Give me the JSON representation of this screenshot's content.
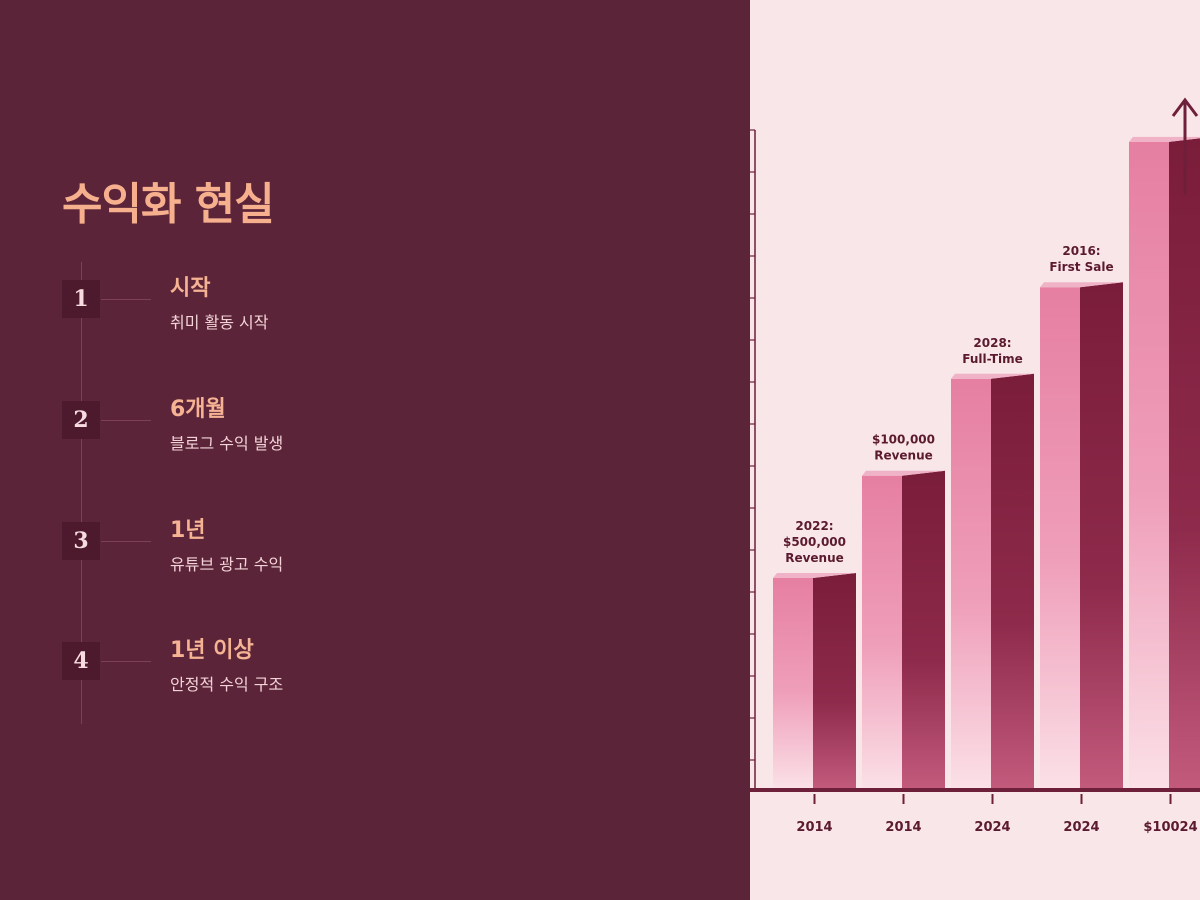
{
  "slide": {
    "title": "수익화 현실"
  },
  "timeline": {
    "steps": [
      {
        "number": "1",
        "title": "시작",
        "description": "취미 활동 시작"
      },
      {
        "number": "2",
        "title": "6개월",
        "description": "블로그 수익 발생"
      },
      {
        "number": "3",
        "title": "1년",
        "description": "유튜브 광고 수익"
      },
      {
        "number": "4",
        "title": "1년 이상",
        "description": "안정적 수익 구조"
      }
    ]
  },
  "chart_data": {
    "type": "bar",
    "categories": [
      "2014",
      "2014",
      "2024",
      "2024",
      "$10024"
    ],
    "values": [
      195,
      290,
      380,
      465,
      600
    ],
    "bar_labels": [
      [
        "2022:",
        "$500,000",
        "Revenue"
      ],
      [
        "$100,000",
        "Revenue"
      ],
      [
        "2028:",
        "Full-Time"
      ],
      [
        "2016:",
        "First Sale"
      ],
      []
    ],
    "title": "",
    "xlabel": "",
    "ylabel": "",
    "ylim": [
      0,
      650
    ],
    "grid": false,
    "trend_arrow": true,
    "colors": {
      "bar_front": "#e685a6",
      "bar_side": "#7d1f3c",
      "bar_top": "#f0b2c6",
      "axis": "#6e1f3a",
      "background": "#f9e6e8"
    }
  }
}
